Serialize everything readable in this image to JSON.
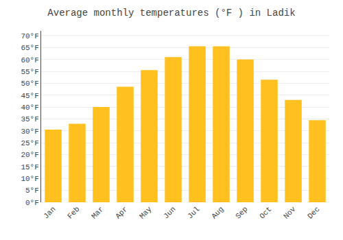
{
  "chart_data": {
    "type": "bar",
    "title": "Average monthly temperatures (°F ) in Ladik",
    "categories": [
      "Jan",
      "Feb",
      "Mar",
      "Apr",
      "May",
      "Jun",
      "Jul",
      "Aug",
      "Sep",
      "Oct",
      "Nov",
      "Dec"
    ],
    "values": [
      30.5,
      33.0,
      40.0,
      48.5,
      55.5,
      61.0,
      65.5,
      65.5,
      60.0,
      51.5,
      43.0,
      34.5
    ],
    "color": "#FFC020",
    "ylim": [
      0,
      72
    ],
    "yticks": [
      {
        "value": 0,
        "label": "0°F"
      },
      {
        "value": 5,
        "label": "5°F"
      },
      {
        "value": 10,
        "label": "10°F"
      },
      {
        "value": 15,
        "label": "15°F"
      },
      {
        "value": 20,
        "label": "20°F"
      },
      {
        "value": 25,
        "label": "25°F"
      },
      {
        "value": 30,
        "label": "30°F"
      },
      {
        "value": 35,
        "label": "35°F"
      },
      {
        "value": 40,
        "label": "40°F"
      },
      {
        "value": 45,
        "label": "45°F"
      },
      {
        "value": 50,
        "label": "50°F"
      },
      {
        "value": 55,
        "label": "55°F"
      },
      {
        "value": 60,
        "label": "60°F"
      },
      {
        "value": 65,
        "label": "65°F"
      },
      {
        "value": 70,
        "label": "70°F"
      }
    ],
    "grid": true
  }
}
